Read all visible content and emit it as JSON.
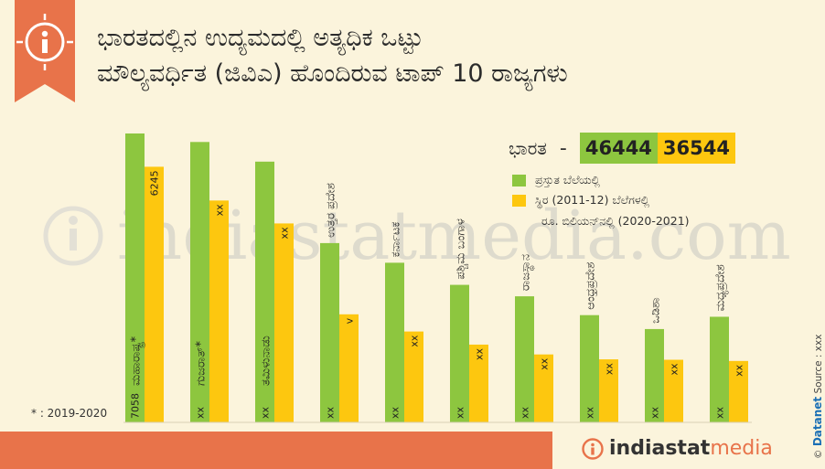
{
  "title_lines": [
    "ಭಾರತದಲ್ಲಿನ ಉದ್ಯಮದಲ್ಲಿ ಅತ್ಯಧಿಕ ಒಟ್ಟು",
    "ಮೌಲ್ಯವರ್ಧಿತ (ಜಿವಿಎ) ಹೊಂದಿರುವ ಟಾಪ್ 10 ರಾಜ್ಯಗಳು"
  ],
  "national": {
    "label": "ಭಾರತ",
    "dash": "-",
    "current": "46444",
    "constant": "36544"
  },
  "legend": {
    "current": "ಪ್ರಸ್ತುತ ಬೆಲೆಯಲ್ಲಿ",
    "constant": "ಸ್ಥಿರ (2011-12) ಬೆಲೆಗಳಲ್ಲಿ",
    "unit": "ರೂ. ಬಿಲಿಯನ್‌ನಲ್ಲಿ (2020-2021)"
  },
  "footnote": "* : 2019-2020",
  "watermark": "indiastatmedia.com",
  "logo": {
    "part1": "indiastat",
    "part2": "media"
  },
  "side_credit": {
    "brand": "Datanet",
    "source": "Source : xxx",
    "copyright": "©"
  },
  "colors": {
    "current": "#8dc63f",
    "constant": "#fdc70f",
    "accent": "#e8734a",
    "background": "#fbf4dc"
  },
  "chart_data": {
    "type": "bar",
    "categories": [
      "ಮಹಾರಾಷ್ಟ್ರ*",
      "ಗುಜರಾತ್*",
      "ತಮಿಳುನಾಡು",
      "ಉತ್ತರ ಪ್ರದೇಶ",
      "ಕರ್ನಾಟಕ",
      "ಪಶ್ಚಿಮ ಬಂಗಾಳ",
      "ರಾಜಸ್ಥಾನ",
      "ಆಂಧ್ರಪ್ರದೇಶ",
      "ಒಡಿಶಾ",
      "ಮಧ್ಯಪ್ರದೇಶ"
    ],
    "series": [
      {
        "name": "ಪ್ರಸ್ತುತ ಬೆಲೆಯಲ್ಲಿ",
        "values": [
          7058,
          6850,
          6370,
          4380,
          3900,
          3360,
          3080,
          2620,
          2280,
          2580
        ],
        "labels": [
          "7058",
          "xx",
          "xx",
          "xx",
          "xx",
          "xx",
          "xx",
          "xx",
          "xx",
          "xx"
        ]
      },
      {
        "name": "ಸ್ಥಿರ (2011-12) ಬೆಲೆಗಳಲ್ಲಿ",
        "values": [
          6245,
          5420,
          4860,
          2640,
          2220,
          1900,
          1660,
          1540,
          1530,
          1500
        ],
        "labels": [
          "6245",
          "xx",
          "xx",
          "v",
          "xx",
          "xx",
          "xx",
          "xx",
          "xx",
          "xx"
        ]
      }
    ],
    "ylim": [
      0,
      7058
    ]
  }
}
